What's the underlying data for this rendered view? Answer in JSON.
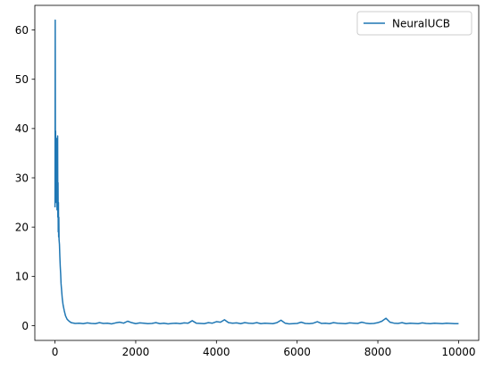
{
  "chart_data": {
    "type": "line",
    "title": "",
    "xlabel": "",
    "ylabel": "",
    "xlim": [
      -500,
      10500
    ],
    "ylim": [
      -3,
      65
    ],
    "xticks": [
      0,
      2000,
      4000,
      6000,
      8000,
      10000
    ],
    "yticks": [
      0,
      10,
      20,
      30,
      40,
      50,
      60
    ],
    "grid": false,
    "legend_position": "top-right",
    "series": [
      {
        "name": "NeuralUCB",
        "color": "#1f77b4",
        "points": [
          [
            0,
            24
          ],
          [
            5,
            62
          ],
          [
            10,
            30
          ],
          [
            15,
            39.5
          ],
          [
            20,
            27
          ],
          [
            25,
            35
          ],
          [
            30,
            25
          ],
          [
            35,
            38
          ],
          [
            40,
            28
          ],
          [
            45,
            34
          ],
          [
            50,
            23.5
          ],
          [
            55,
            30
          ],
          [
            60,
            26
          ],
          [
            65,
            38.5
          ],
          [
            70,
            22
          ],
          [
            75,
            29
          ],
          [
            80,
            19
          ],
          [
            85,
            25
          ],
          [
            90,
            18
          ],
          [
            95,
            22
          ],
          [
            100,
            17.5
          ],
          [
            110,
            16.5
          ],
          [
            120,
            14
          ],
          [
            130,
            12
          ],
          [
            140,
            10.5
          ],
          [
            150,
            8.5
          ],
          [
            160,
            7.5
          ],
          [
            180,
            5.5
          ],
          [
            200,
            4.2
          ],
          [
            230,
            3
          ],
          [
            260,
            2
          ],
          [
            300,
            1.3
          ],
          [
            350,
            0.9
          ],
          [
            400,
            0.6
          ],
          [
            500,
            0.45
          ],
          [
            600,
            0.5
          ],
          [
            700,
            0.4
          ],
          [
            800,
            0.55
          ],
          [
            900,
            0.45
          ],
          [
            1000,
            0.4
          ],
          [
            1100,
            0.6
          ],
          [
            1200,
            0.45
          ],
          [
            1300,
            0.5
          ],
          [
            1400,
            0.35
          ],
          [
            1500,
            0.55
          ],
          [
            1600,
            0.7
          ],
          [
            1700,
            0.5
          ],
          [
            1800,
            0.9
          ],
          [
            1900,
            0.6
          ],
          [
            2000,
            0.4
          ],
          [
            2100,
            0.55
          ],
          [
            2200,
            0.5
          ],
          [
            2300,
            0.4
          ],
          [
            2400,
            0.45
          ],
          [
            2500,
            0.6
          ],
          [
            2600,
            0.4
          ],
          [
            2700,
            0.5
          ],
          [
            2800,
            0.35
          ],
          [
            2900,
            0.45
          ],
          [
            3000,
            0.5
          ],
          [
            3100,
            0.4
          ],
          [
            3200,
            0.55
          ],
          [
            3300,
            0.5
          ],
          [
            3400,
            1.0
          ],
          [
            3500,
            0.5
          ],
          [
            3600,
            0.45
          ],
          [
            3700,
            0.4
          ],
          [
            3800,
            0.6
          ],
          [
            3900,
            0.5
          ],
          [
            4000,
            0.8
          ],
          [
            4100,
            0.7
          ],
          [
            4200,
            1.2
          ],
          [
            4300,
            0.6
          ],
          [
            4400,
            0.5
          ],
          [
            4500,
            0.55
          ],
          [
            4600,
            0.4
          ],
          [
            4700,
            0.6
          ],
          [
            4800,
            0.5
          ],
          [
            4900,
            0.45
          ],
          [
            5000,
            0.6
          ],
          [
            5100,
            0.4
          ],
          [
            5200,
            0.5
          ],
          [
            5300,
            0.45
          ],
          [
            5400,
            0.4
          ],
          [
            5500,
            0.6
          ],
          [
            5600,
            1.1
          ],
          [
            5700,
            0.5
          ],
          [
            5800,
            0.35
          ],
          [
            5900,
            0.4
          ],
          [
            6000,
            0.45
          ],
          [
            6100,
            0.7
          ],
          [
            6200,
            0.45
          ],
          [
            6300,
            0.4
          ],
          [
            6400,
            0.5
          ],
          [
            6500,
            0.8
          ],
          [
            6600,
            0.45
          ],
          [
            6700,
            0.5
          ],
          [
            6800,
            0.4
          ],
          [
            6900,
            0.6
          ],
          [
            7000,
            0.5
          ],
          [
            7100,
            0.45
          ],
          [
            7200,
            0.4
          ],
          [
            7300,
            0.55
          ],
          [
            7400,
            0.5
          ],
          [
            7500,
            0.45
          ],
          [
            7600,
            0.7
          ],
          [
            7700,
            0.5
          ],
          [
            7800,
            0.4
          ],
          [
            7900,
            0.45
          ],
          [
            8000,
            0.6
          ],
          [
            8100,
            0.9
          ],
          [
            8200,
            1.5
          ],
          [
            8300,
            0.7
          ],
          [
            8400,
            0.5
          ],
          [
            8500,
            0.45
          ],
          [
            8600,
            0.6
          ],
          [
            8700,
            0.4
          ],
          [
            8800,
            0.5
          ],
          [
            8900,
            0.45
          ],
          [
            9000,
            0.4
          ],
          [
            9100,
            0.55
          ],
          [
            9200,
            0.45
          ],
          [
            9300,
            0.4
          ],
          [
            9400,
            0.5
          ],
          [
            9500,
            0.45
          ],
          [
            9600,
            0.4
          ],
          [
            9700,
            0.5
          ],
          [
            9800,
            0.45
          ],
          [
            9900,
            0.4
          ],
          [
            10000,
            0.4
          ]
        ]
      }
    ]
  }
}
